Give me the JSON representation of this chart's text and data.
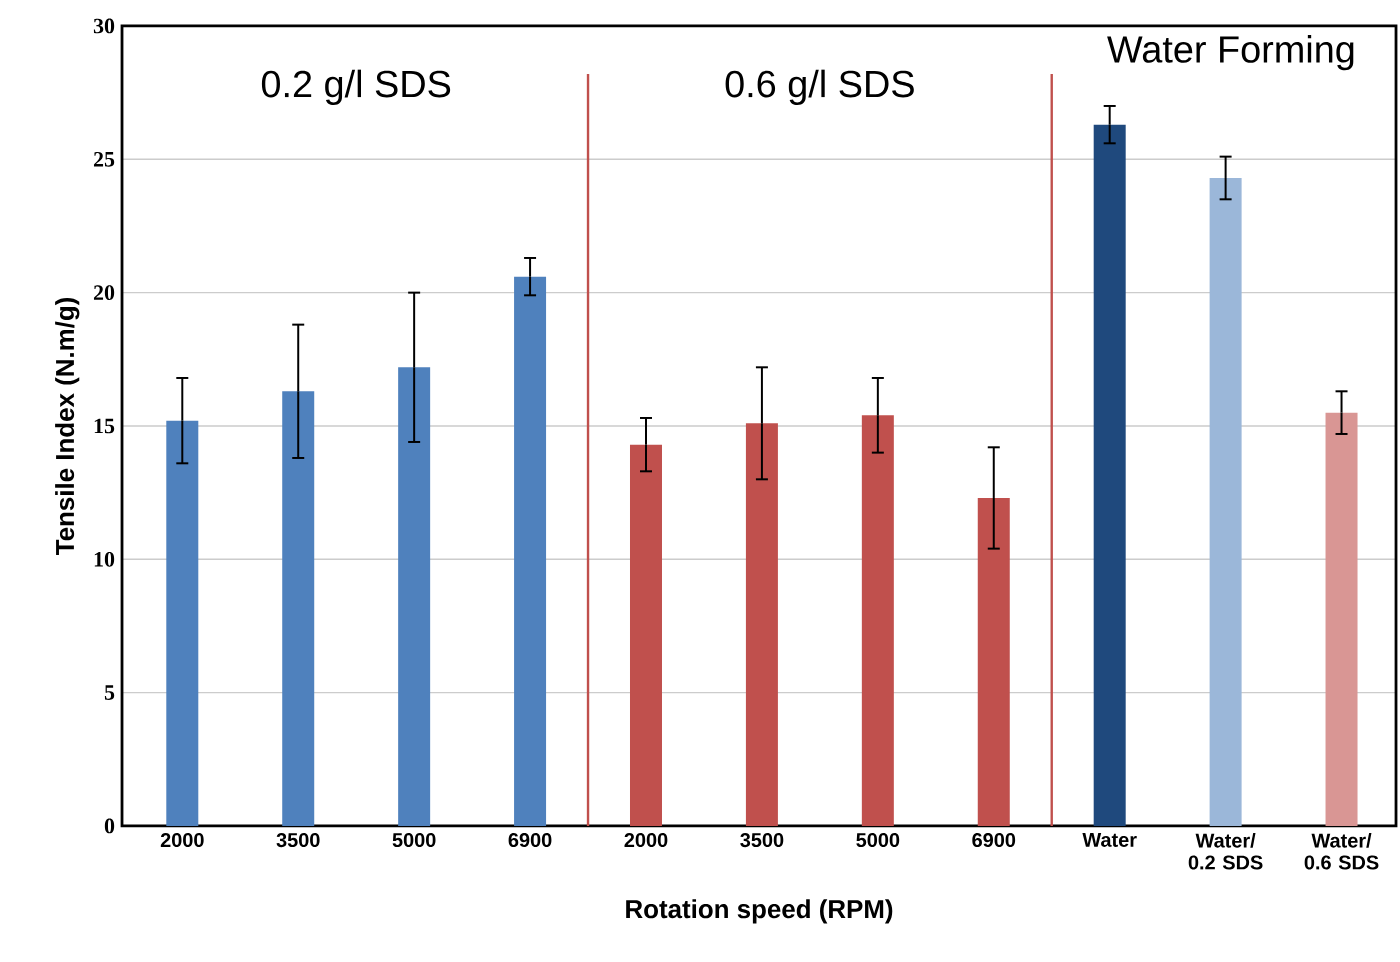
{
  "chart_data": {
    "type": "bar",
    "xlabel": "Rotation speed (RPM)",
    "ylabel": "Tensile Index (N.m/g)",
    "categories": [
      "2000",
      "3500",
      "5000",
      "6900",
      "2000",
      "3500",
      "5000",
      "6900",
      "Water",
      "Water/ 0.2 SDS",
      "Water/ 0.6 SDS"
    ],
    "values": [
      15.2,
      16.3,
      17.2,
      20.6,
      14.3,
      15.1,
      15.4,
      12.3,
      26.3,
      24.3,
      15.5
    ],
    "errors": [
      1.6,
      2.5,
      2.8,
      0.7,
      1.0,
      2.1,
      1.4,
      1.9,
      0.7,
      0.8,
      0.8
    ],
    "colors": [
      "#4f81bd",
      "#4f81bd",
      "#4f81bd",
      "#4f81bd",
      "#c0504d",
      "#c0504d",
      "#c0504d",
      "#c0504d",
      "#1f497d",
      "#9bb7d9",
      "#d99694"
    ],
    "ylim": [
      0,
      30
    ],
    "yticks": [
      0,
      5,
      10,
      15,
      20,
      25,
      30
    ],
    "grid": "y",
    "annotations": [
      "0.2 g/l SDS",
      "0.6 g/l SDS",
      "Water Forming"
    ]
  }
}
